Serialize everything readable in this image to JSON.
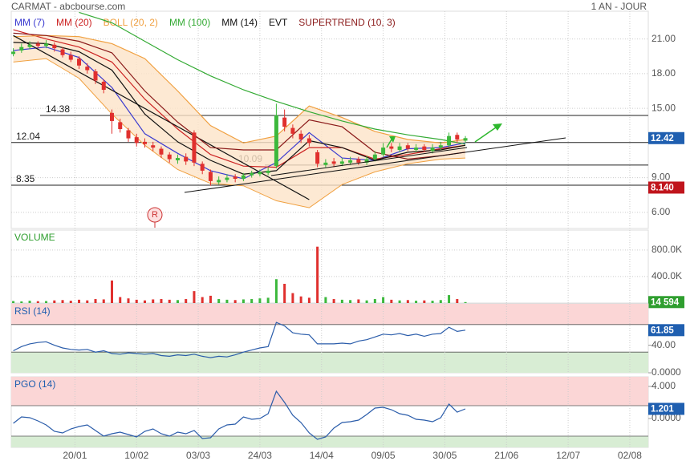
{
  "header": {
    "title": "CARMAT - abcbourse.com",
    "period": "1 AN - JOUR"
  },
  "chart_data": [
    {
      "type": "candlestick",
      "x": [
        0,
        2,
        4,
        6,
        8,
        10,
        12,
        14,
        16,
        18,
        20,
        22,
        24,
        26,
        28,
        30,
        32,
        34,
        36,
        38,
        40,
        42,
        44,
        46,
        48,
        50,
        52,
        54,
        56,
        58,
        60,
        62,
        64,
        66,
        68,
        70,
        72,
        74,
        76,
        78,
        80,
        82,
        84,
        86,
        88,
        90,
        92,
        94,
        96,
        98,
        100,
        102,
        104,
        106,
        108,
        110
      ],
      "open": [
        19.7,
        20.0,
        20.3,
        20.6,
        20.4,
        20.5,
        20.1,
        19.6,
        19.3,
        18.6,
        18.2,
        17.3,
        14.6,
        13.8,
        13.1,
        12.5,
        12.1,
        11.8,
        11.5,
        11.0,
        10.5,
        10.8,
        12.9,
        10.2,
        9.5,
        8.6,
        8.8,
        9.1,
        8.9,
        9.2,
        9.3,
        9.4,
        10.0,
        14.2,
        13.3,
        12.8,
        12.4,
        11.2,
        10.1,
        10.4,
        10.2,
        10.3,
        10.6,
        10.3,
        10.6,
        11.0,
        11.7,
        11.4,
        11.8,
        11.4,
        11.7,
        11.3,
        11.6,
        11.8,
        12.7,
        12.2
      ],
      "high": [
        20.2,
        20.6,
        20.8,
        20.8,
        20.9,
        20.7,
        20.3,
        19.9,
        19.5,
        18.9,
        18.4,
        17.5,
        14.9,
        14.1,
        13.3,
        12.8,
        12.4,
        12.1,
        11.7,
        11.2,
        11.0,
        11.1,
        13.1,
        10.4,
        9.7,
        9.1,
        9.3,
        9.3,
        9.4,
        9.6,
        9.7,
        9.9,
        15.4,
        14.9,
        13.6,
        13.1,
        12.7,
        11.4,
        10.6,
        10.7,
        10.7,
        10.8,
        10.8,
        10.9,
        11.3,
        12.0,
        12.0,
        12.0,
        12.0,
        11.9,
        11.9,
        11.9,
        12.1,
        12.9,
        12.9,
        12.6
      ],
      "low": [
        19.5,
        19.8,
        20.1,
        20.2,
        20.2,
        19.9,
        19.4,
        19.0,
        18.4,
        18.0,
        17.1,
        16.3,
        12.8,
        12.9,
        12.1,
        11.7,
        11.6,
        11.3,
        10.7,
        10.3,
        10.2,
        10.1,
        10.0,
        9.3,
        8.3,
        8.4,
        8.6,
        8.6,
        8.7,
        9.0,
        9.1,
        9.2,
        9.8,
        13.0,
        12.4,
        12.0,
        11.7,
        9.9,
        9.9,
        9.9,
        10.0,
        10.1,
        10.1,
        10.1,
        10.4,
        10.8,
        11.2,
        11.2,
        11.3,
        11.2,
        11.2,
        11.1,
        11.4,
        11.6,
        12.0,
        12.0
      ],
      "close": [
        19.9,
        20.3,
        20.5,
        20.4,
        20.6,
        20.2,
        19.6,
        19.2,
        18.7,
        18.3,
        17.4,
        16.6,
        13.9,
        13.2,
        12.4,
        12.0,
        11.9,
        11.6,
        11.0,
        10.6,
        10.7,
        10.4,
        10.3,
        9.6,
        8.7,
        8.8,
        9.0,
        8.9,
        9.2,
        9.4,
        9.5,
        9.6,
        14.4,
        13.4,
        12.8,
        12.3,
        12.0,
        10.2,
        10.3,
        10.2,
        10.4,
        10.5,
        10.3,
        10.6,
        11.0,
        11.6,
        11.5,
        11.7,
        11.5,
        11.6,
        11.4,
        11.6,
        11.8,
        12.6,
        12.3,
        12.42
      ],
      "up_color": "#3cb83c",
      "down_color": "#e0302e",
      "series": [
        {
          "name": "MM (7)",
          "color": "#3a3ad0",
          "x": [
            0,
            8,
            16,
            24,
            32,
            40,
            48,
            56,
            64,
            72,
            80,
            88,
            96,
            104,
            110
          ],
          "values": [
            20.0,
            20.3,
            19.4,
            16.8,
            12.8,
            11.1,
            9.6,
            8.9,
            10.3,
            12.9,
            10.7,
            10.5,
            11.5,
            11.6,
            12.0
          ]
        },
        {
          "name": "MM (20)",
          "color": "#cc2222",
          "x": [
            0,
            8,
            16,
            24,
            32,
            40,
            48,
            56,
            64,
            72,
            80,
            88,
            96,
            104,
            110
          ],
          "values": [
            21.8,
            21.0,
            20.3,
            19.0,
            15.8,
            13.2,
            11.0,
            10.0,
            9.9,
            11.6,
            11.6,
            10.6,
            11.0,
            11.5,
            11.8
          ]
        },
        {
          "name": "BOLL (20, 2)",
          "color": "#f0a040",
          "fill": "#fde4c8",
          "x": [
            0,
            8,
            16,
            24,
            32,
            40,
            48,
            56,
            64,
            72,
            80,
            88,
            96,
            104,
            110
          ],
          "values": [
            21.2,
            21.3,
            21.2,
            20.6,
            19.3,
            16.5,
            13.5,
            12.0,
            12.6,
            15.2,
            14.2,
            13.0,
            12.3,
            12.0,
            12.3
          ],
          "lower": [
            19.0,
            19.3,
            17.6,
            14.5,
            11.8,
            9.7,
            8.5,
            8.3,
            7.0,
            6.4,
            8.4,
            9.5,
            10.2,
            10.6,
            10.7
          ]
        },
        {
          "name": "MM (100)",
          "color": "#33aa33",
          "x": [
            0,
            8,
            16,
            24,
            32,
            40,
            48,
            56,
            64,
            72,
            80,
            88,
            96,
            104,
            110
          ],
          "values": [
            null,
            null,
            23.3,
            22.4,
            20.8,
            19.2,
            17.8,
            16.6,
            15.6,
            14.7,
            13.9,
            13.2,
            12.7,
            12.3,
            11.9
          ]
        },
        {
          "name": "MM (14)",
          "color": "#111111",
          "x": [
            0,
            8,
            16,
            24,
            32,
            40,
            48,
            56,
            64,
            72,
            80,
            88,
            96,
            104,
            110
          ],
          "values": [
            20.7,
            20.6,
            19.9,
            18.3,
            14.5,
            12.1,
            10.5,
            9.3,
            9.6,
            12.2,
            11.6,
            10.5,
            11.2,
            11.4,
            11.8
          ]
        },
        {
          "name": "EVT",
          "color": "#111111",
          "x": [
            0,
            72
          ],
          "values": [
            21.3,
            7.1
          ]
        },
        {
          "name": "SUPERTREND (10, 3)",
          "color": "#8b1a1a",
          "x": [
            0,
            8,
            16,
            24,
            32,
            40,
            48,
            56,
            64,
            72,
            80,
            88,
            96,
            104,
            110
          ],
          "values": [
            21.5,
            21.3,
            20.8,
            19.8,
            16.5,
            13.8,
            11.6,
            11.4,
            11.4,
            14.0,
            13.4,
            11.2,
            10.6,
            10.9,
            11.2
          ]
        }
      ],
      "levels": [
        14.38,
        12.04,
        10.09,
        8.35
      ],
      "event_marker": "R",
      "tags": [
        {
          "value": 12.42,
          "color": "#1f5fb0"
        },
        {
          "value": 8.14,
          "label": "8.140",
          "color": "#c0141c"
        }
      ],
      "xlim": [
        -0.5,
        154.5
      ],
      "xticks": [
        {
          "value": 15,
          "label": "20/01"
        },
        {
          "value": 30,
          "label": "10/02"
        },
        {
          "value": 45,
          "label": "03/03"
        },
        {
          "value": 60,
          "label": "24/03"
        },
        {
          "value": 75,
          "label": "14/04"
        },
        {
          "value": 90,
          "label": "09/05"
        },
        {
          "value": 105,
          "label": "30/05"
        },
        {
          "value": 120,
          "label": "21/06"
        },
        {
          "value": 135,
          "label": "12/07"
        },
        {
          "value": 150,
          "label": "02/08"
        }
      ],
      "ylim": [
        4.6,
        23.4
      ],
      "yticks": [
        {
          "value": 21,
          "label": "21.00"
        },
        {
          "value": 18,
          "label": "18.00"
        },
        {
          "value": 15,
          "label": "15.00"
        },
        {
          "value": 9,
          "label": "9.00"
        },
        {
          "value": 6,
          "label": "6.00"
        }
      ],
      "grid": true
    },
    {
      "type": "bar",
      "title": "VOLUME",
      "title_color": "#2e9e2e",
      "x": [
        0,
        2,
        4,
        6,
        8,
        10,
        12,
        14,
        16,
        18,
        20,
        22,
        24,
        26,
        28,
        30,
        32,
        34,
        36,
        38,
        40,
        42,
        44,
        46,
        48,
        50,
        52,
        54,
        56,
        58,
        60,
        62,
        64,
        66,
        68,
        70,
        72,
        74,
        76,
        78,
        80,
        82,
        84,
        86,
        88,
        90,
        92,
        94,
        96,
        98,
        100,
        102,
        104,
        106,
        108,
        110
      ],
      "values": [
        30000,
        25000,
        35000,
        28000,
        30000,
        40000,
        45000,
        35000,
        50000,
        40000,
        60000,
        55000,
        340000,
        90000,
        70000,
        50000,
        40000,
        55000,
        60000,
        50000,
        45000,
        60000,
        180000,
        90000,
        110000,
        60000,
        50000,
        45000,
        55000,
        60000,
        70000,
        80000,
        360000,
        290000,
        150000,
        100000,
        80000,
        850000,
        90000,
        60000,
        50000,
        45000,
        55000,
        40000,
        60000,
        90000,
        50000,
        40000,
        45000,
        35000,
        40000,
        35000,
        45000,
        120000,
        60000,
        14594
      ],
      "tags": [
        {
          "value": 14594,
          "label": "14 594",
          "color": "#2e9e2e"
        }
      ],
      "ylim": [
        0,
        1100000
      ],
      "yticks": [
        {
          "value": 400000,
          "label": "400.0K"
        },
        {
          "value": 800000,
          "label": "800.0K"
        }
      ],
      "grid": true
    },
    {
      "type": "line",
      "title": "RSI (14)",
      "title_color": "#1f5fb0",
      "color": "#2a5caa",
      "x": [
        0,
        2,
        4,
        6,
        8,
        10,
        12,
        14,
        16,
        18,
        20,
        22,
        24,
        26,
        28,
        30,
        32,
        34,
        36,
        38,
        40,
        42,
        44,
        46,
        48,
        50,
        52,
        54,
        56,
        58,
        60,
        62,
        64,
        66,
        68,
        70,
        72,
        74,
        76,
        78,
        80,
        82,
        84,
        86,
        88,
        90,
        92,
        94,
        96,
        98,
        100,
        102,
        104,
        106,
        108,
        110
      ],
      "values": [
        32,
        38,
        42,
        44,
        45,
        40,
        36,
        34,
        33,
        34,
        30,
        32,
        28,
        27,
        29,
        28,
        27,
        28,
        25,
        24,
        26,
        25,
        27,
        24,
        22,
        24,
        23,
        26,
        30,
        33,
        36,
        38,
        73,
        68,
        58,
        56,
        55,
        42,
        42,
        42,
        43,
        42,
        46,
        48,
        52,
        56,
        55,
        57,
        54,
        56,
        53,
        56,
        57,
        66,
        60,
        61.85
      ],
      "zones": [
        {
          "from": 70,
          "to": 100,
          "color": "#fbd6d6"
        },
        {
          "from": 0,
          "to": 30,
          "color": "#d8edd4"
        }
      ],
      "tags": [
        {
          "value": 61.85,
          "color": "#1f5fb0"
        }
      ],
      "ylim": [
        0,
        100
      ],
      "yticks": [
        {
          "value": 40,
          "label": "40.00"
        },
        {
          "value": 0,
          "label": "0.0000"
        }
      ],
      "grid": false
    },
    {
      "type": "line",
      "title": "PGO (14)",
      "title_color": "#1f5fb0",
      "color": "#2a5caa",
      "x": [
        0,
        2,
        4,
        6,
        8,
        10,
        12,
        14,
        16,
        18,
        20,
        22,
        24,
        26,
        28,
        30,
        32,
        34,
        36,
        38,
        40,
        42,
        44,
        46,
        48,
        50,
        52,
        54,
        56,
        58,
        60,
        62,
        64,
        66,
        68,
        70,
        72,
        74,
        76,
        78,
        80,
        82,
        84,
        86,
        88,
        90,
        92,
        94,
        96,
        98,
        100,
        102,
        104,
        106,
        108,
        110
      ],
      "values": [
        -0.6,
        0.2,
        0.1,
        -0.3,
        -0.8,
        -1.6,
        -1.8,
        -1.3,
        -1,
        -0.8,
        -1.5,
        -2.2,
        -1.9,
        -1.7,
        -2,
        -2.3,
        -1.6,
        -1.3,
        -1.9,
        -2.2,
        -1.7,
        -1.9,
        -1.5,
        -2.5,
        -2.4,
        -1.3,
        -0.8,
        -0.7,
        0.2,
        -0.1,
        0,
        0.6,
        3.4,
        2,
        0.4,
        -0.5,
        -1.8,
        -2.6,
        -2.3,
        -1.2,
        -0.5,
        -0.4,
        -0.2,
        0.5,
        1.3,
        1.4,
        1.1,
        0.6,
        0.4,
        -0.1,
        -0.2,
        -0.4,
        0.1,
        1.8,
        0.8,
        1.201
      ],
      "zones": [
        {
          "from": 1.6,
          "to": 5.2,
          "color": "#fbd6d6"
        },
        {
          "from": -3.6,
          "to": -2.2,
          "color": "#d8edd4"
        }
      ],
      "tags": [
        {
          "value": 1.201,
          "color": "#1f5fb0"
        }
      ],
      "ylim": [
        -3.6,
        5.2
      ],
      "yticks": [
        {
          "value": 4,
          "label": "4.000"
        },
        {
          "value": 0,
          "label": "0.0000"
        }
      ],
      "grid": false
    }
  ]
}
